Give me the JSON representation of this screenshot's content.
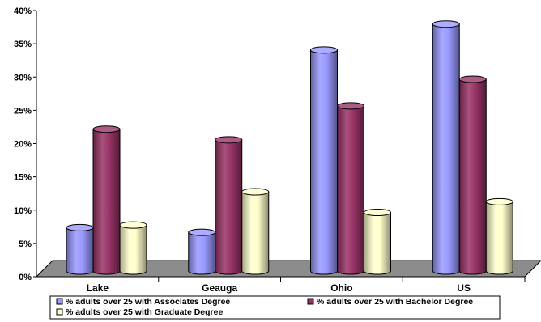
{
  "chart_data": {
    "type": "bar",
    "categories": [
      "Lake",
      "Geauga",
      "Ohio",
      "US"
    ],
    "series": [
      {
        "name": "% adults over 25 with Associates Degree",
        "color": "#9999ff",
        "values": [
          7.0,
          6.3,
          33.7,
          37.6
        ]
      },
      {
        "name": "% adults over 25 with Bachelor Degree",
        "color": "#993366",
        "values": [
          21.8,
          20.2,
          25.3,
          29.3
        ]
      },
      {
        "name": "% adults over 25 with Graduate Degree",
        "color": "#ffffcc",
        "values": [
          7.4,
          12.4,
          9.3,
          10.9
        ]
      }
    ],
    "ylim": [
      0,
      40
    ],
    "yticks": [
      "0%",
      "5%",
      "10%",
      "15%",
      "20%",
      "25%",
      "30%",
      "35%",
      "40%"
    ],
    "title": "",
    "xlabel": "",
    "ylabel": "",
    "grid": false,
    "legend_position": "bottom",
    "style": "3d-cylinder"
  }
}
